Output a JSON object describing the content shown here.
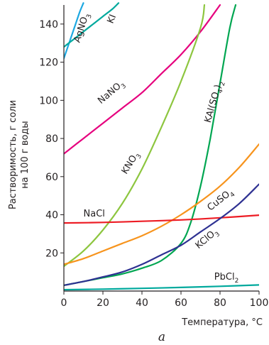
{
  "chart_data": {
    "type": "line",
    "xlabel": "Температура, °C",
    "ylabel": [
      "Растворимость, г соли",
      "на 100 г воды"
    ],
    "caption": "а",
    "xlim": [
      0,
      100
    ],
    "ylim": [
      0,
      150
    ],
    "xticks": [
      0,
      20,
      40,
      60,
      80,
      100
    ],
    "yticks": [
      20,
      40,
      60,
      80,
      100,
      120,
      140
    ],
    "grid": false,
    "series": [
      {
        "name": "AgNO₃",
        "label_main": "AgNO",
        "label_sub": "3",
        "label_tail": "",
        "color": "#1da8e1",
        "x": [
          0,
          2,
          4,
          6,
          8,
          10
        ],
        "y": [
          122,
          128,
          134,
          140,
          146,
          151
        ]
      },
      {
        "name": "KI",
        "label_main": "KI",
        "label_sub": "",
        "label_tail": "",
        "color": "#00a99d",
        "x": [
          0,
          5,
          10,
          15,
          20,
          25,
          28
        ],
        "y": [
          128,
          132,
          136,
          140,
          144,
          148,
          151
        ]
      },
      {
        "name": "NaNO₃",
        "label_main": "NaNO",
        "label_sub": "3",
        "label_tail": "",
        "color": "#e6007e",
        "x": [
          0,
          10,
          20,
          30,
          40,
          50,
          60,
          70,
          80
        ],
        "y": [
          72,
          80,
          88,
          96,
          104,
          114,
          124,
          136,
          150
        ]
      },
      {
        "name": "KAl(SO₄)₂",
        "label_main": "KAl(SO",
        "label_sub": "4",
        "label_tail": ")2",
        "color": "#00a651",
        "x": [
          0,
          10,
          20,
          30,
          40,
          50,
          60,
          65,
          70,
          75,
          80,
          85,
          88
        ],
        "y": [
          3,
          5,
          7,
          9,
          12,
          16,
          25,
          36,
          55,
          80,
          109,
          138,
          150
        ]
      },
      {
        "name": "KNO₃",
        "label_main": "KNO",
        "label_sub": "3",
        "label_tail": "",
        "color": "#8dc63f",
        "x": [
          0,
          10,
          20,
          30,
          40,
          50,
          60,
          70,
          72
        ],
        "y": [
          13,
          21,
          32,
          46,
          64,
          86,
          110,
          138,
          150
        ]
      },
      {
        "name": "CuSO₄",
        "label_main": "CuSO",
        "label_sub": "4",
        "label_tail": "",
        "color": "#f7941d",
        "x": [
          0,
          10,
          20,
          30,
          40,
          50,
          60,
          70,
          80,
          90,
          100
        ],
        "y": [
          14,
          17,
          21,
          25,
          29,
          34,
          40,
          47,
          55,
          65,
          77
        ]
      },
      {
        "name": "NaCl",
        "label_main": "NaCl",
        "label_sub": "",
        "label_tail": "",
        "color": "#ed1c24",
        "x": [
          0,
          20,
          40,
          60,
          80,
          100
        ],
        "y": [
          35.7,
          36,
          36.6,
          37.3,
          38.4,
          39.8
        ]
      },
      {
        "name": "KClO₃",
        "label_main": "KClO",
        "label_sub": "3",
        "label_tail": "",
        "color": "#2e3192",
        "x": [
          0,
          10,
          20,
          30,
          40,
          50,
          60,
          70,
          80,
          90,
          100
        ],
        "y": [
          3,
          5,
          7.4,
          10,
          14,
          19,
          24,
          31,
          38,
          46,
          56
        ]
      },
      {
        "name": "PbCl₂",
        "label_main": "PbCl",
        "label_sub": "2",
        "label_tail": "",
        "color": "#00a99d",
        "x": [
          0,
          20,
          40,
          60,
          80,
          100
        ],
        "y": [
          0.7,
          1,
          1.4,
          1.9,
          2.5,
          3.2
        ]
      }
    ]
  }
}
